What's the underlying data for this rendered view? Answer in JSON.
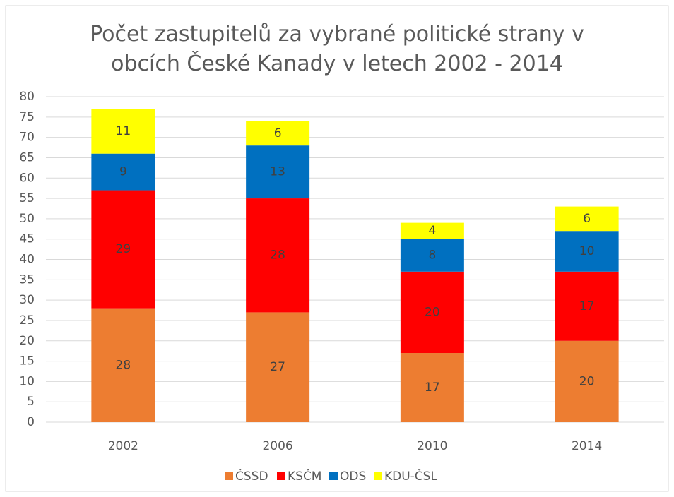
{
  "chart_data": {
    "type": "stacked_bar",
    "title": "Počet zastupitelů za vybrané politické strany v obcích České Kanady v letech 2002 - 2014",
    "categories": [
      "2002",
      "2006",
      "2010",
      "2014"
    ],
    "series": [
      {
        "name": "ČSSD",
        "color": "#ed7d31",
        "values": [
          28,
          27,
          17,
          20
        ]
      },
      {
        "name": "KSČM",
        "color": "#ff0000",
        "values": [
          29,
          28,
          20,
          17
        ]
      },
      {
        "name": "ODS",
        "color": "#0070c0",
        "values": [
          9,
          13,
          8,
          10
        ]
      },
      {
        "name": "KDU-ČSL",
        "color": "#ffff00",
        "values": [
          11,
          6,
          4,
          6
        ]
      }
    ],
    "ylim": [
      0,
      80
    ],
    "yticks": [
      0,
      5,
      10,
      15,
      20,
      25,
      30,
      35,
      40,
      45,
      50,
      55,
      60,
      65,
      70,
      75,
      80
    ],
    "grid": true,
    "legend": "bottom"
  }
}
